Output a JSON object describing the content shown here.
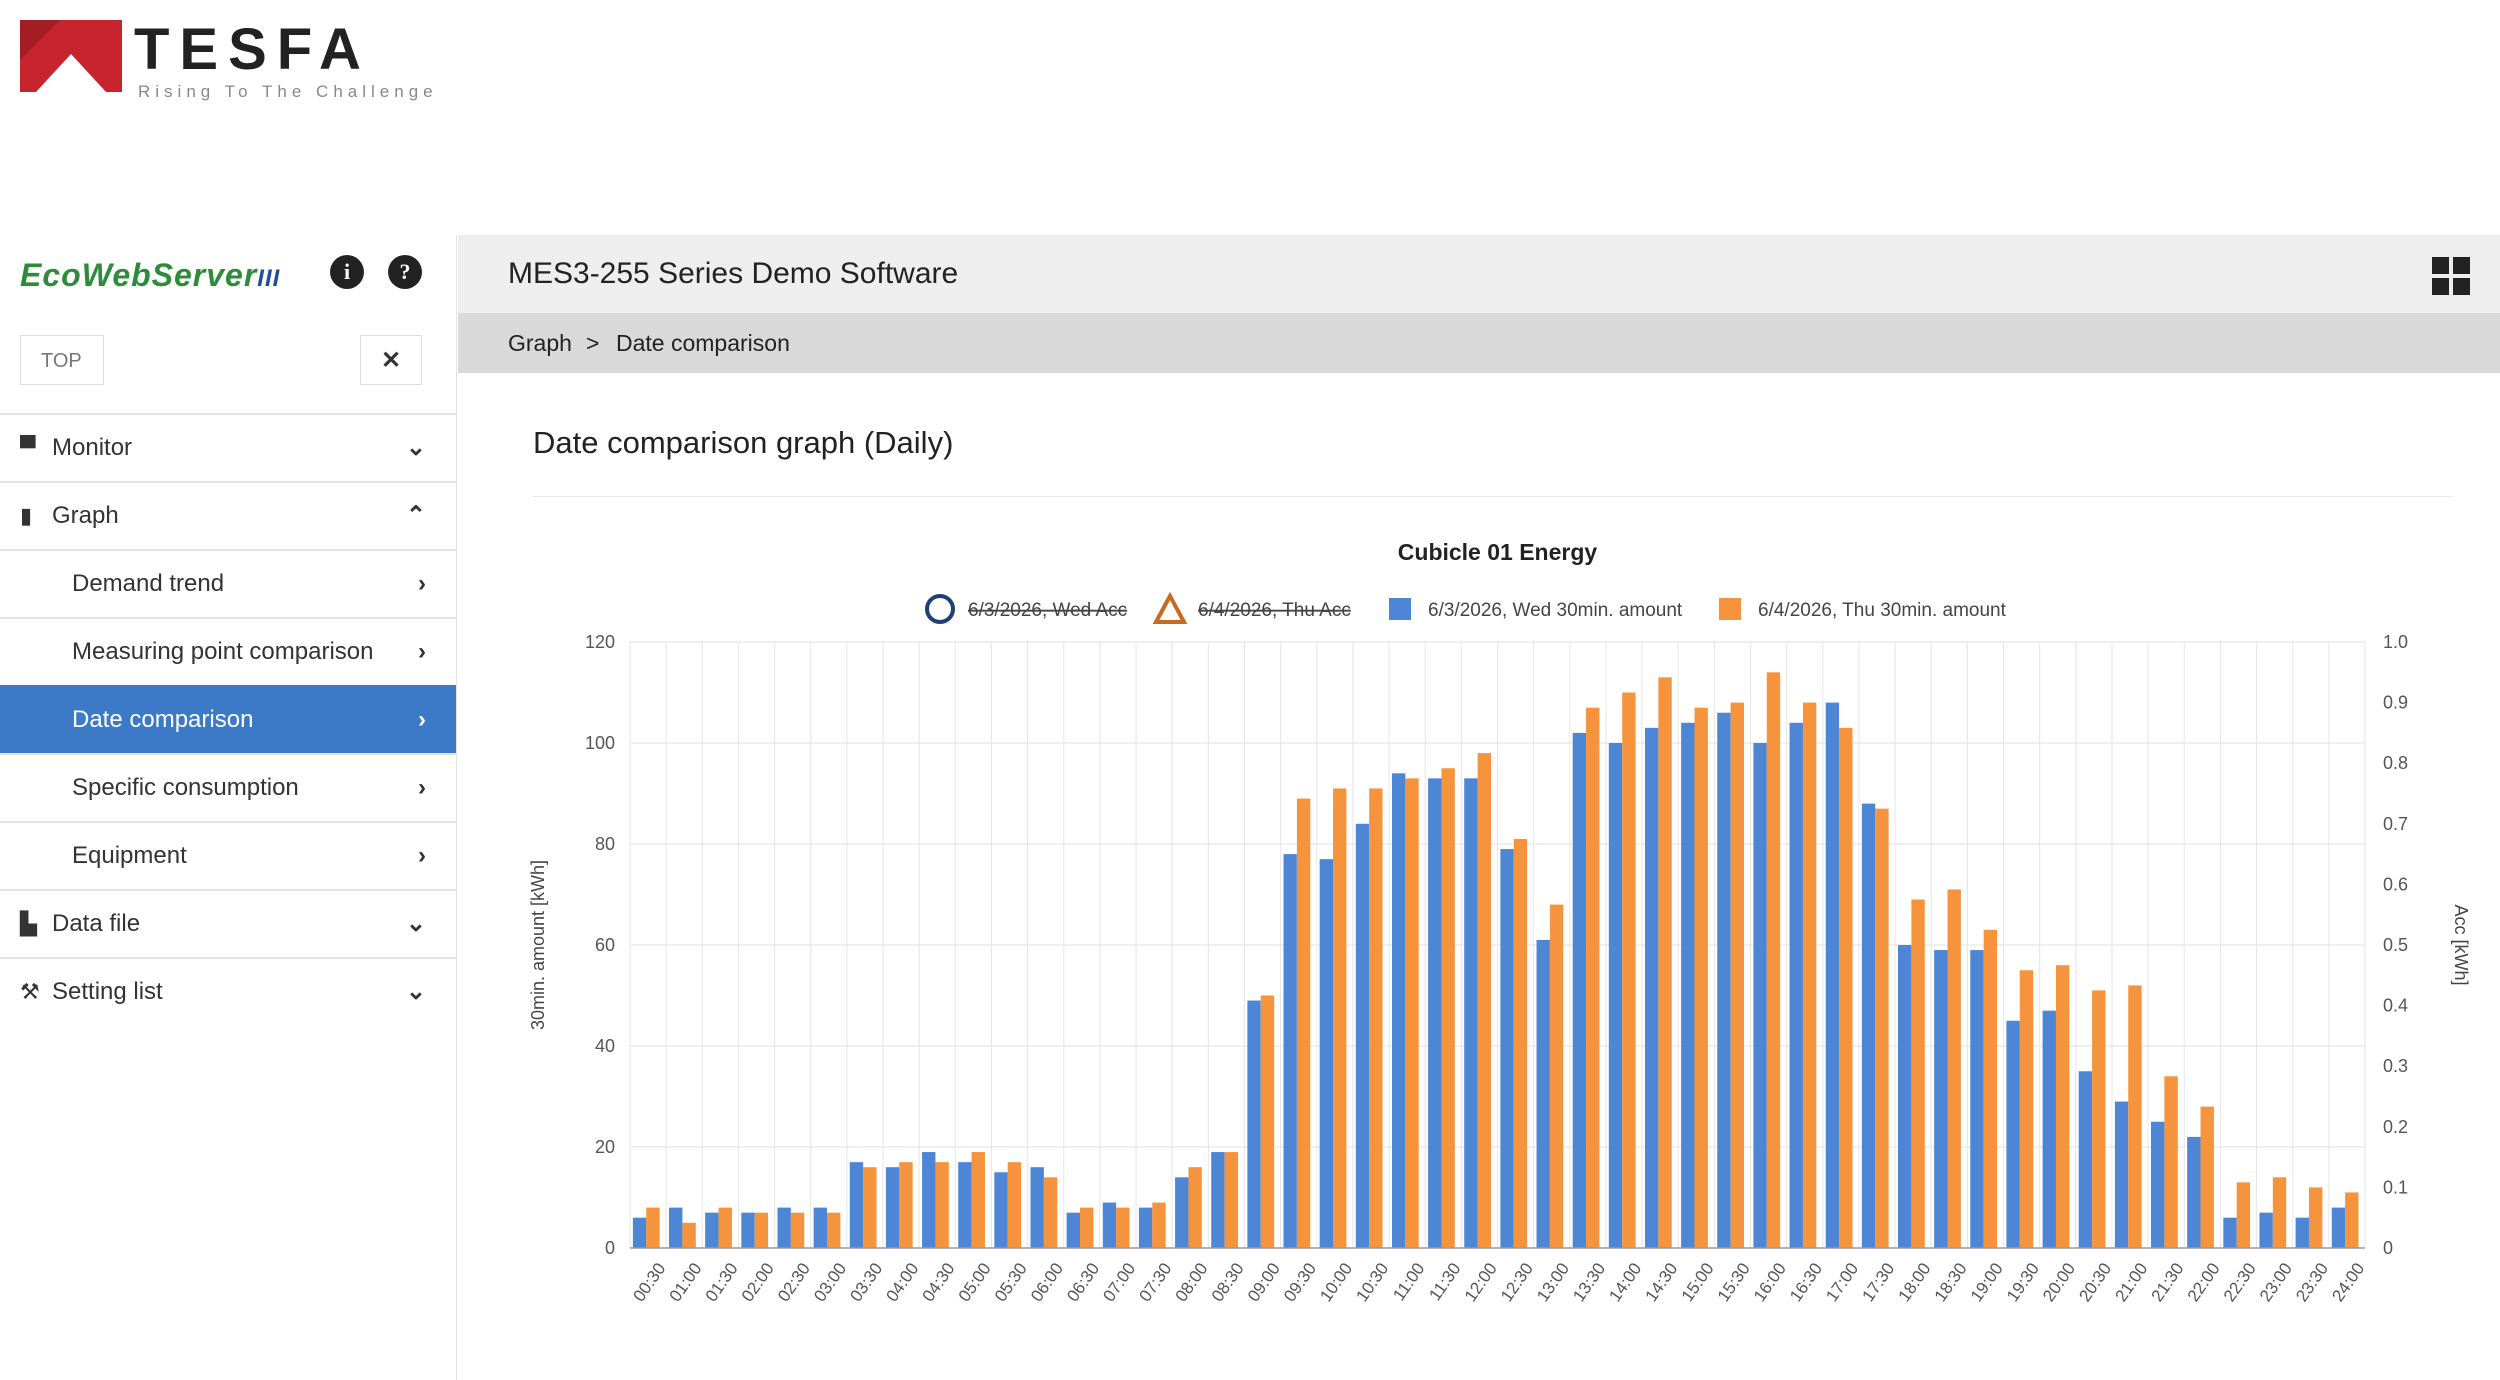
{
  "brand": {
    "name": "TESFA",
    "tagline": "Rising To The Challenge"
  },
  "app": {
    "logo_text": "EcoWebServer",
    "logo_suffix": "III",
    "title": "MES3-255 Series Demo Software"
  },
  "sidebar": {
    "search_value": "TOP",
    "items": [
      {
        "label": "Monitor",
        "icon": "monitor-icon",
        "expanded": false
      },
      {
        "label": "Graph",
        "icon": "bar-chart-icon",
        "expanded": true
      },
      {
        "label": "Demand trend",
        "sub": true
      },
      {
        "label": "Measuring point comparison",
        "sub": true
      },
      {
        "label": "Date comparison",
        "sub": true,
        "active": true
      },
      {
        "label": "Specific consumption",
        "sub": true
      },
      {
        "label": "Equipment",
        "sub": true
      },
      {
        "label": "Data file",
        "icon": "file-icon",
        "expanded": false
      },
      {
        "label": "Setting list",
        "icon": "wrench-icon",
        "expanded": false
      }
    ]
  },
  "breadcrumb": {
    "parent": "Graph",
    "separator": ">",
    "current": "Date comparison"
  },
  "page": {
    "heading": "Date comparison graph  (Daily)"
  },
  "colors": {
    "series1": "#4e86d6",
    "series2": "#f5943c",
    "active_nav": "#3c7ac8",
    "brand_red": "#c8242e"
  },
  "chart_data": {
    "type": "bar",
    "title": "Cubicle 01 Energy",
    "ylabel": "30min. amount [kWh]",
    "y2label": "Acc [kWh]",
    "ylim": [
      0,
      120
    ],
    "y2lim": [
      0,
      1.0
    ],
    "yticks": [
      0,
      20,
      40,
      60,
      80,
      100,
      120
    ],
    "y2ticks": [
      "0",
      "0.1",
      "0.2",
      "0.3",
      "0.4",
      "0.5",
      "0.6",
      "0.7",
      "0.8",
      "0.9",
      "1.0"
    ],
    "grid": true,
    "legend_position": "top",
    "legend": [
      {
        "label": "6/3/2026, Wed Acc",
        "marker": "circle",
        "hidden": true
      },
      {
        "label": "6/4/2026, Thu Acc",
        "marker": "triangle",
        "hidden": true
      },
      {
        "label": "6/3/2026, Wed 30min. amount",
        "marker": "square"
      },
      {
        "label": "6/4/2026, Thu 30min. amount",
        "marker": "square"
      }
    ],
    "categories": [
      "00:30",
      "01:00",
      "01:30",
      "02:00",
      "02:30",
      "03:00",
      "03:30",
      "04:00",
      "04:30",
      "05:00",
      "05:30",
      "06:00",
      "06:30",
      "07:00",
      "07:30",
      "08:00",
      "08:30",
      "09:00",
      "09:30",
      "10:00",
      "10:30",
      "11:00",
      "11:30",
      "12:00",
      "12:30",
      "13:00",
      "13:30",
      "14:00",
      "14:30",
      "15:00",
      "15:30",
      "16:00",
      "16:30",
      "17:00",
      "17:30",
      "18:00",
      "18:30",
      "19:00",
      "19:30",
      "20:00",
      "20:30",
      "21:00",
      "21:30",
      "22:00",
      "22:30",
      "23:00",
      "23:30",
      "24:00"
    ],
    "series": [
      {
        "name": "6/3/2026, Wed 30min. amount",
        "values": [
          6,
          8,
          7,
          7,
          8,
          8,
          17,
          16,
          19,
          17,
          15,
          16,
          7,
          9,
          8,
          14,
          19,
          49,
          78,
          77,
          84,
          94,
          93,
          93,
          79,
          61,
          102,
          100,
          103,
          104,
          106,
          100,
          104,
          108,
          88,
          60,
          59,
          59,
          45,
          47,
          35,
          29,
          25,
          22,
          6,
          7,
          6,
          8
        ]
      },
      {
        "name": "6/4/2026, Thu 30min. amount",
        "values": [
          8,
          5,
          8,
          7,
          7,
          7,
          16,
          17,
          17,
          19,
          17,
          14,
          8,
          8,
          9,
          16,
          19,
          50,
          89,
          91,
          91,
          93,
          95,
          98,
          81,
          68,
          107,
          110,
          113,
          107,
          108,
          114,
          108,
          103,
          87,
          69,
          71,
          63,
          55,
          56,
          51,
          52,
          34,
          28,
          13,
          14,
          12,
          11
        ]
      }
    ]
  }
}
